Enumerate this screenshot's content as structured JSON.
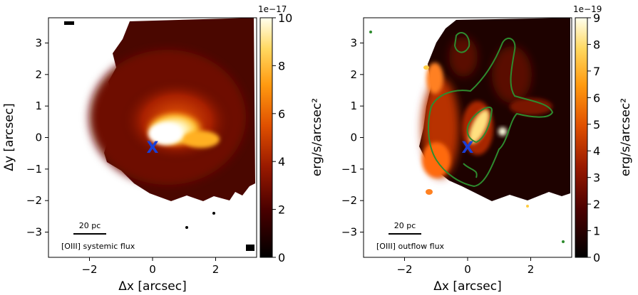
{
  "chart_data": [
    {
      "type": "heatmap",
      "xlabel": "Δx [arcsec]",
      "ylabel": "Δy [arcsec]",
      "xticks": [
        -2,
        0,
        2
      ],
      "yticks": [
        3,
        2,
        1,
        0,
        -1,
        -2,
        -3
      ],
      "xlim": [
        -3.3,
        3.3
      ],
      "ylim": [
        -3.8,
        3.8
      ],
      "marker": {
        "symbol": "X",
        "x": 0,
        "y": -0.3,
        "color": "#1a3fd6"
      },
      "scalebar": {
        "label": "20 pc"
      },
      "annotation": "[OIII] systemic flux",
      "colorbar": {
        "label": "erg/s/arcsec²",
        "exponent": "1e−17",
        "ticks": [
          0,
          2,
          4,
          6,
          8,
          10
        ],
        "range": [
          0,
          10
        ],
        "colormap": "afmhot"
      }
    },
    {
      "type": "heatmap",
      "xlabel": "Δx [arcsec]",
      "ylabel": "",
      "xticks": [
        -2,
        0,
        2
      ],
      "yticks": [
        3,
        2,
        1,
        0,
        -1,
        -2,
        -3
      ],
      "xlim": [
        -3.3,
        3.3
      ],
      "ylim": [
        -3.8,
        3.8
      ],
      "marker": {
        "symbol": "X",
        "x": 0,
        "y": -0.3,
        "color": "#1a3fd6"
      },
      "scalebar": {
        "label": "20 pc"
      },
      "annotation": "[OIII] outflow flux",
      "contour_color": "#2e8b2e",
      "colorbar": {
        "label": "erg/s/arcsec²",
        "exponent": "1e−19",
        "ticks": [
          0,
          1,
          2,
          3,
          4,
          5,
          6,
          7,
          8,
          9
        ],
        "range": [
          0,
          9
        ],
        "colormap": "afmhot"
      }
    }
  ]
}
